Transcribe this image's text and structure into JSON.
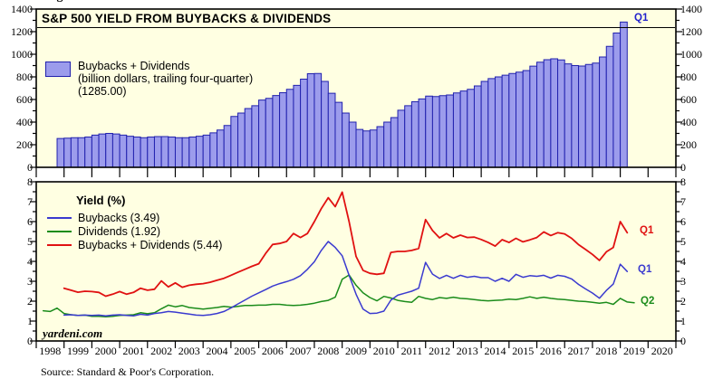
{
  "page": {
    "clipped_top_label": "Figure",
    "watermark": "yardeni.com",
    "source": "Source: Standard & Poor's Corporation."
  },
  "colors": {
    "plot_background": "#FFFFE2",
    "frame": "#000000",
    "bar_fill": "#9C9CEC",
    "bar_border": "#2121AE",
    "buybacks": "#3A3ACF",
    "dividends": "#1B8C1B",
    "buybacks_plus_dividends": "#E01111",
    "bar_end_label": "#2222CC"
  },
  "x_axis": {
    "start_year": 1998,
    "end_year": 2021,
    "year_labels": [
      "1998",
      "1999",
      "2000",
      "2001",
      "2002",
      "2003",
      "2004",
      "2005",
      "2006",
      "2007",
      "2008",
      "2009",
      "2010",
      "2011",
      "2012",
      "2013",
      "2014",
      "2015",
      "2016",
      "2017",
      "2018",
      "2019",
      "2020"
    ]
  },
  "chart_data": [
    {
      "type": "bar",
      "panel": "top",
      "title": "S&P 500 YIELD FROM BUYBACKS & DIVIDENDS",
      "legend_lines": [
        "Buybacks + Dividends",
        "(billion dollars, trailing four-quarter)",
        "(1285.00)"
      ],
      "legend_position": "top-left",
      "grid": false,
      "ylim": [
        0,
        1400
      ],
      "ytick_major": 200,
      "ytick_minor": 100,
      "ytick_labels": [
        "0",
        "200",
        "400",
        "600",
        "800",
        "1000",
        "1200",
        "1400"
      ],
      "start": "1998Q4",
      "freq": "quarterly",
      "end_label": "Q1",
      "latest_value": 1285.0,
      "values": [
        255,
        258,
        262,
        262,
        268,
        285,
        295,
        300,
        295,
        285,
        275,
        268,
        262,
        268,
        272,
        272,
        268,
        262,
        262,
        268,
        275,
        285,
        305,
        330,
        370,
        450,
        480,
        520,
        545,
        595,
        610,
        635,
        660,
        690,
        725,
        780,
        828,
        830,
        760,
        655,
        575,
        480,
        400,
        335,
        322,
        330,
        360,
        400,
        440,
        505,
        545,
        580,
        605,
        630,
        626,
        634,
        640,
        658,
        675,
        690,
        720,
        760,
        785,
        800,
        815,
        830,
        842,
        856,
        895,
        930,
        952,
        960,
        950,
        915,
        900,
        896,
        910,
        922,
        976,
        1070,
        1188,
        1285
      ]
    },
    {
      "type": "line",
      "panel": "bottom",
      "legend_title": "Yield (%)",
      "legend_position": "top-left",
      "grid": false,
      "ylim": [
        0,
        8
      ],
      "ytick_major": 1,
      "ytick_minor": 0.5,
      "ytick_labels": [
        "0",
        "1",
        "2",
        "3",
        "4",
        "5",
        "6",
        "7",
        "8"
      ],
      "freq": "quarterly",
      "series": [
        {
          "name": "Buybacks (3.49)",
          "color_key": "buybacks",
          "start": "1998Q4",
          "end_label": "Q1",
          "latest_value": 3.49,
          "values": [
            1.3,
            1.32,
            1.28,
            1.3,
            1.28,
            1.3,
            1.26,
            1.3,
            1.32,
            1.28,
            1.26,
            1.34,
            1.3,
            1.38,
            1.42,
            1.48,
            1.45,
            1.4,
            1.35,
            1.3,
            1.28,
            1.32,
            1.38,
            1.48,
            1.66,
            1.86,
            2.05,
            2.25,
            2.42,
            2.58,
            2.76,
            2.88,
            2.98,
            3.1,
            3.28,
            3.6,
            3.98,
            4.55,
            5.0,
            4.7,
            4.28,
            3.3,
            2.35,
            1.6,
            1.38,
            1.4,
            1.5,
            2.05,
            2.3,
            2.4,
            2.5,
            2.65,
            3.95,
            3.36,
            3.14,
            3.3,
            3.15,
            3.3,
            3.2,
            3.25,
            3.18,
            3.18,
            3.0,
            3.15,
            3.0,
            3.35,
            3.2,
            3.28,
            3.25,
            3.3,
            3.16,
            3.3,
            3.25,
            3.12,
            2.84,
            2.62,
            2.41,
            2.15,
            2.54,
            2.86,
            3.86,
            3.49
          ]
        },
        {
          "name": "Dividends (1.92)",
          "color_key": "dividends",
          "start": "1998Q1",
          "end_label": "Q2",
          "latest_value": 1.92,
          "values": [
            1.52,
            1.48,
            1.65,
            1.38,
            1.32,
            1.28,
            1.3,
            1.24,
            1.24,
            1.22,
            1.24,
            1.28,
            1.3,
            1.32,
            1.42,
            1.37,
            1.42,
            1.62,
            1.8,
            1.72,
            1.78,
            1.68,
            1.64,
            1.6,
            1.64,
            1.68,
            1.74,
            1.7,
            1.74,
            1.78,
            1.78,
            1.8,
            1.8,
            1.84,
            1.84,
            1.8,
            1.78,
            1.8,
            1.84,
            1.9,
            1.98,
            2.04,
            2.2,
            3.1,
            3.32,
            2.8,
            2.42,
            2.18,
            2.02,
            2.24,
            2.16,
            2.04,
            1.98,
            1.94,
            2.24,
            2.14,
            2.08,
            2.18,
            2.14,
            2.2,
            2.14,
            2.12,
            2.08,
            2.04,
            2.02,
            2.04,
            2.06,
            2.1,
            2.08,
            2.14,
            2.22,
            2.14,
            2.2,
            2.14,
            2.1,
            2.08,
            2.04,
            2.0,
            1.98,
            1.94,
            1.9,
            1.94,
            1.84,
            2.14,
            1.96,
            1.92
          ]
        },
        {
          "name": "Buybacks + Dividends (5.44)",
          "color_key": "buybacks_plus_dividends",
          "start": "1998Q4",
          "end_label": "Q1",
          "latest_value": 5.44,
          "values": [
            2.65,
            2.55,
            2.45,
            2.5,
            2.48,
            2.44,
            2.25,
            2.35,
            2.48,
            2.35,
            2.44,
            2.65,
            2.55,
            2.6,
            3.02,
            2.72,
            2.92,
            2.7,
            2.8,
            2.85,
            2.88,
            2.95,
            3.05,
            3.15,
            3.3,
            3.45,
            3.6,
            3.75,
            3.88,
            4.4,
            4.85,
            4.9,
            5.0,
            5.4,
            5.2,
            5.4,
            6.0,
            6.65,
            7.2,
            6.75,
            7.48,
            6.0,
            4.25,
            3.55,
            3.4,
            3.35,
            3.4,
            4.45,
            4.5,
            4.5,
            4.55,
            4.65,
            6.1,
            5.55,
            5.18,
            5.4,
            5.18,
            5.32,
            5.2,
            5.22,
            5.1,
            4.95,
            4.77,
            5.09,
            4.95,
            5.16,
            4.98,
            5.08,
            5.2,
            5.48,
            5.3,
            5.44,
            5.38,
            5.16,
            4.84,
            4.6,
            4.35,
            4.05,
            4.48,
            4.7,
            6.0,
            5.44
          ]
        }
      ]
    }
  ]
}
